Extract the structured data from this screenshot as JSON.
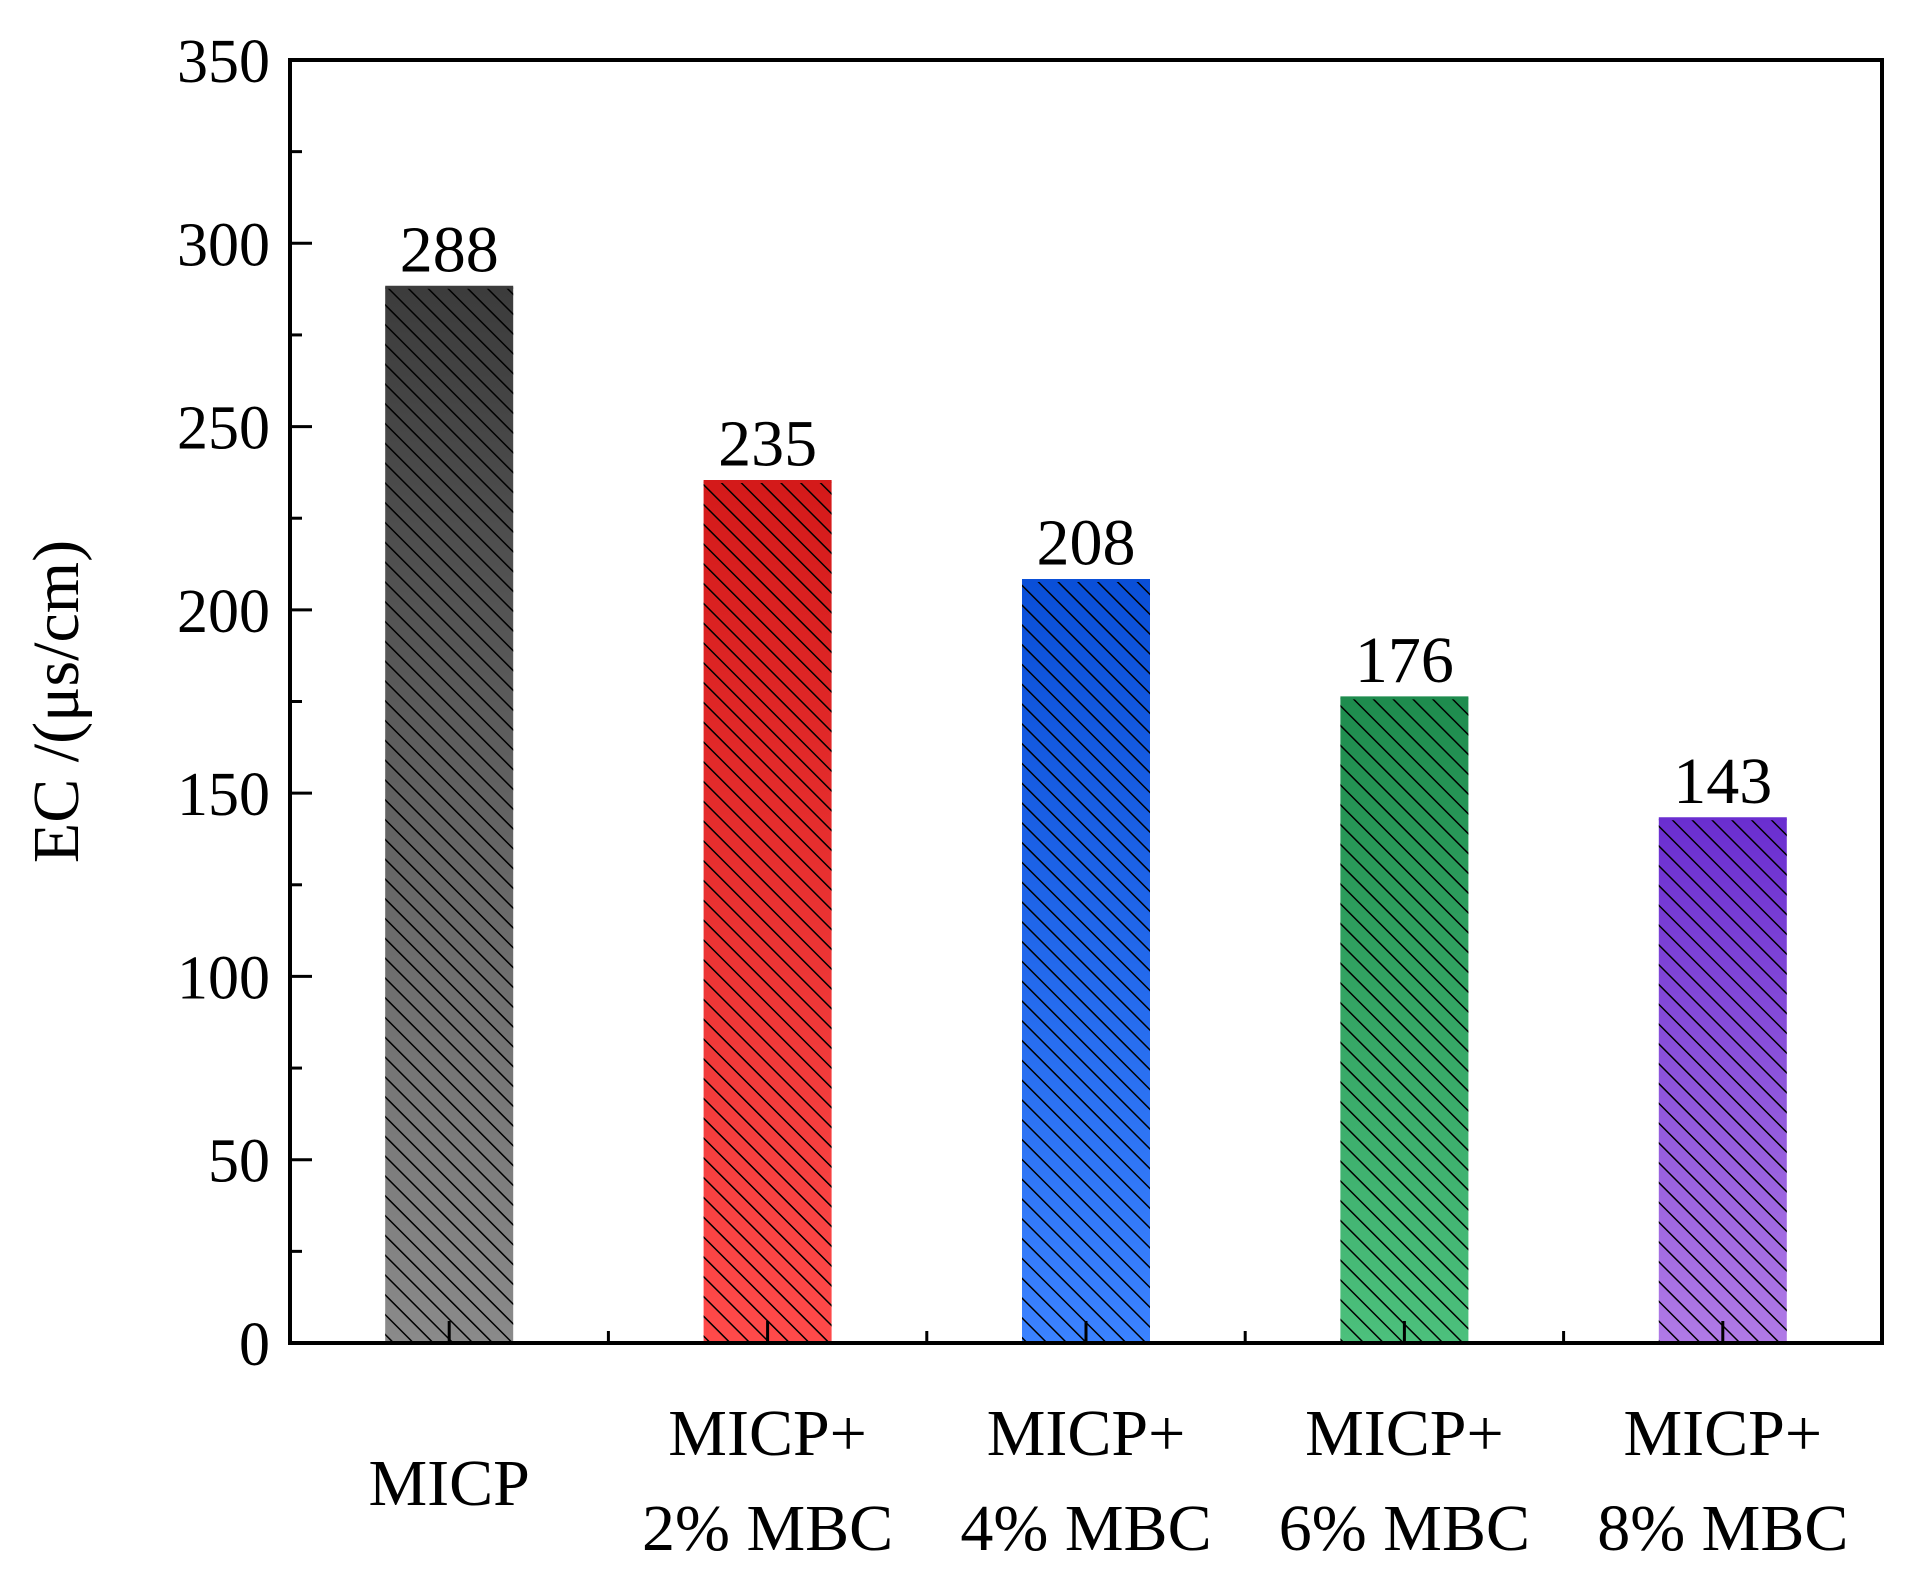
{
  "chart_data": {
    "type": "bar",
    "title": "",
    "xlabel": "",
    "ylabel": "EC /(μs/cm)",
    "ylim": [
      0,
      350
    ],
    "yticks": [
      "0",
      "50",
      "100",
      "150",
      "200",
      "250",
      "300",
      "350"
    ],
    "categories": [
      [
        "MICP"
      ],
      [
        "MICP+",
        "2% MBC"
      ],
      [
        "MICP+",
        "4% MBC"
      ],
      [
        "MICP+",
        "6% MBC"
      ],
      [
        "MICP+",
        "8% MBC"
      ]
    ],
    "values": [
      288,
      235,
      208,
      176,
      143
    ],
    "value_labels": [
      "288",
      "235",
      "208",
      "176",
      "143"
    ],
    "colors": [
      [
        "#3c3c3c",
        "#8a8a8a"
      ],
      [
        "#d41a1a",
        "#ff4a4a"
      ],
      [
        "#0a4fd8",
        "#3b82ff"
      ],
      [
        "#1e8c4e",
        "#4cc07c"
      ],
      [
        "#6a2ed0",
        "#b07ae6"
      ]
    ],
    "pattern": "diagonal-hatch",
    "grid": false,
    "legend": "none"
  }
}
